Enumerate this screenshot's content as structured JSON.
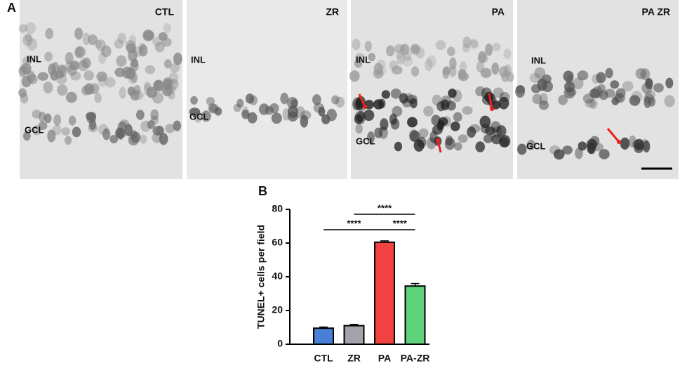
{
  "panel_a": {
    "label": "A",
    "images": [
      {
        "title": "CTL",
        "layers": [
          "INL",
          "GCL"
        ]
      },
      {
        "title": "ZR",
        "layers": [
          "INL",
          "GCL"
        ]
      },
      {
        "title": "PA",
        "layers": [
          "INL",
          "GCL"
        ]
      },
      {
        "title": "PA ZR",
        "layers": [
          "INL",
          "GCL"
        ]
      }
    ]
  },
  "chart_data": {
    "type": "bar",
    "panel_label": "B",
    "ylabel": "TUNEL+ cells per field",
    "categories": [
      "CTL",
      "ZR",
      "PA",
      "PA-ZR"
    ],
    "values": [
      9.5,
      11,
      60.5,
      34.5
    ],
    "errors": [
      0.7,
      0.8,
      0.8,
      1.5
    ],
    "colors": [
      "#4a7fd8",
      "#a2a2aa",
      "#f24141",
      "#5fd27c"
    ],
    "ylim": [
      0,
      80
    ],
    "yticks": [
      0,
      20,
      40,
      60,
      80
    ],
    "significance": [
      {
        "from": 1,
        "to": 3,
        "label": "****"
      },
      {
        "from": 0,
        "to": 2,
        "label": "****"
      },
      {
        "from": 2,
        "to": 3,
        "label": "****"
      }
    ]
  }
}
